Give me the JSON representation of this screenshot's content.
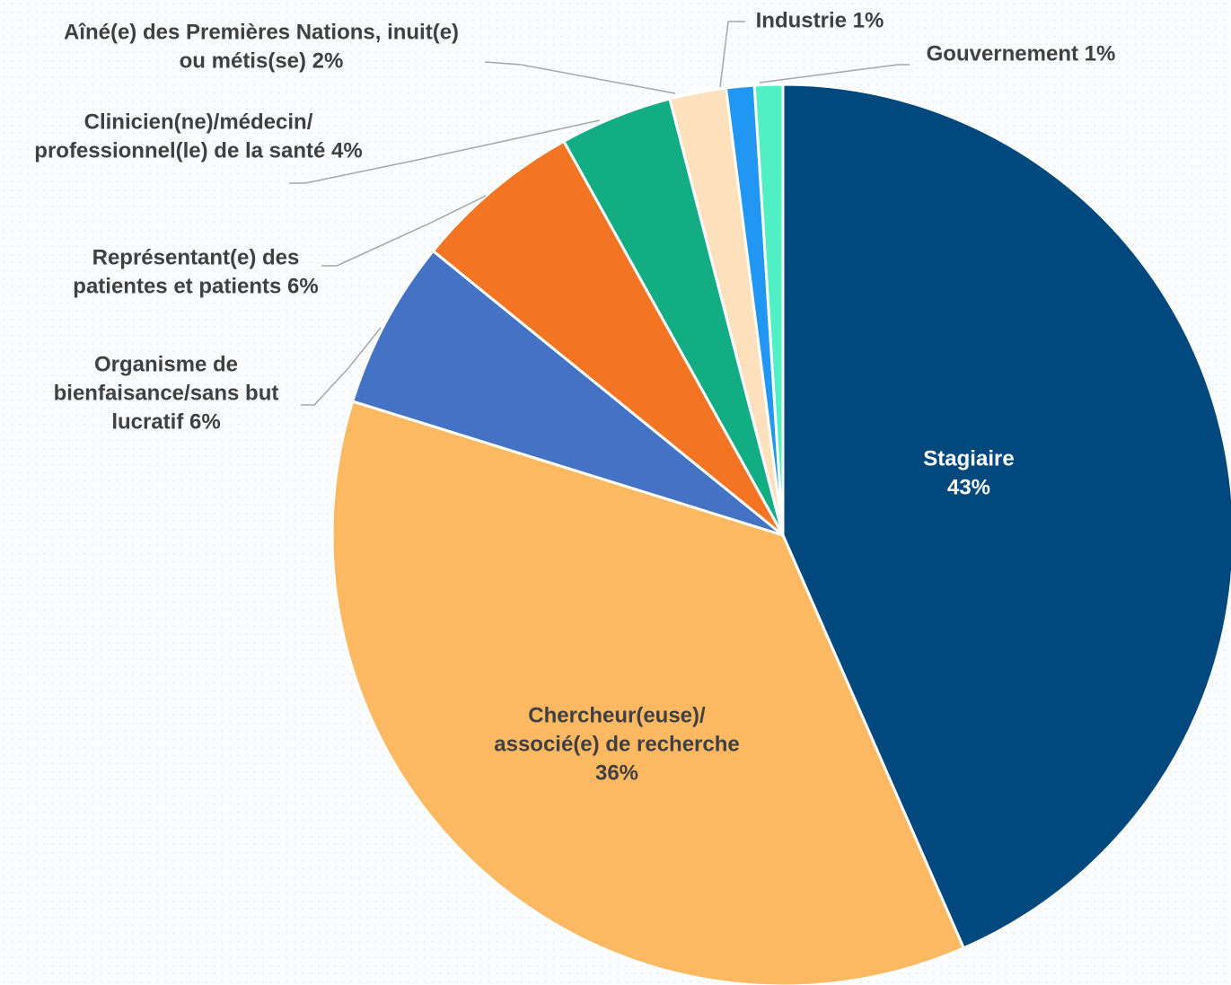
{
  "chart_data": {
    "type": "pie",
    "title": "",
    "start_angle_deg": 0,
    "direction": "clockwise",
    "slices": [
      {
        "label": "Stagiaire",
        "value": 43,
        "value_label": "43%",
        "color": "#00487e",
        "label_position": "inside",
        "label_color": "#ffffff",
        "label_lines": [
          "Stagiaire",
          "43%"
        ]
      },
      {
        "label": "Chercheur(euse)/ associé(e) de recherche",
        "value": 36,
        "value_label": "36%",
        "color": "#fdb862",
        "label_position": "inside",
        "label_color": "#404040",
        "label_lines": [
          "Chercheur(euse)/",
          "associé(e)  de recherche",
          "36%"
        ]
      },
      {
        "label": "Organisme de bienfaisance/sans but lucratif",
        "value": 6,
        "value_label": "6%",
        "color": "#4472c4",
        "label_position": "outside",
        "label_lines": [
          "Organisme de",
          "bienfaisance/sans but",
          "lucratif 6%"
        ]
      },
      {
        "label": "Représentant(e) des patientes et patients",
        "value": 6,
        "value_label": "6%",
        "color": "#f37423",
        "label_position": "outside",
        "label_lines": [
          "Représentant(e) des",
          "patientes et patients 6%"
        ]
      },
      {
        "label": "Clinicien(ne)/médecin/ professionnel(le) de la santé",
        "value": 4,
        "value_label": "4%",
        "color": "#13ad84",
        "label_position": "outside",
        "label_lines": [
          "Clinicien(ne)/médecin/",
          "professionnel(le) de la santé 4%"
        ]
      },
      {
        "label": "Aîné(e) des Premières Nations, inuit(e) ou métis(se)",
        "value": 2,
        "value_label": "2%",
        "color": "#fee0bc",
        "label_position": "outside",
        "label_lines": [
          "Aîné(e) des Premières Nations, inuit(e)",
          "ou métis(se) 2%"
        ]
      },
      {
        "label": "Industrie",
        "value": 1,
        "value_label": "1%",
        "color": "#2196f3",
        "label_position": "outside",
        "label_lines": [
          "Industrie 1%"
        ]
      },
      {
        "label": "Gouvernement",
        "value": 1,
        "value_label": "1%",
        "color": "#50f0c4",
        "label_position": "outside",
        "label_lines": [
          "Gouvernement 1%"
        ]
      }
    ]
  }
}
